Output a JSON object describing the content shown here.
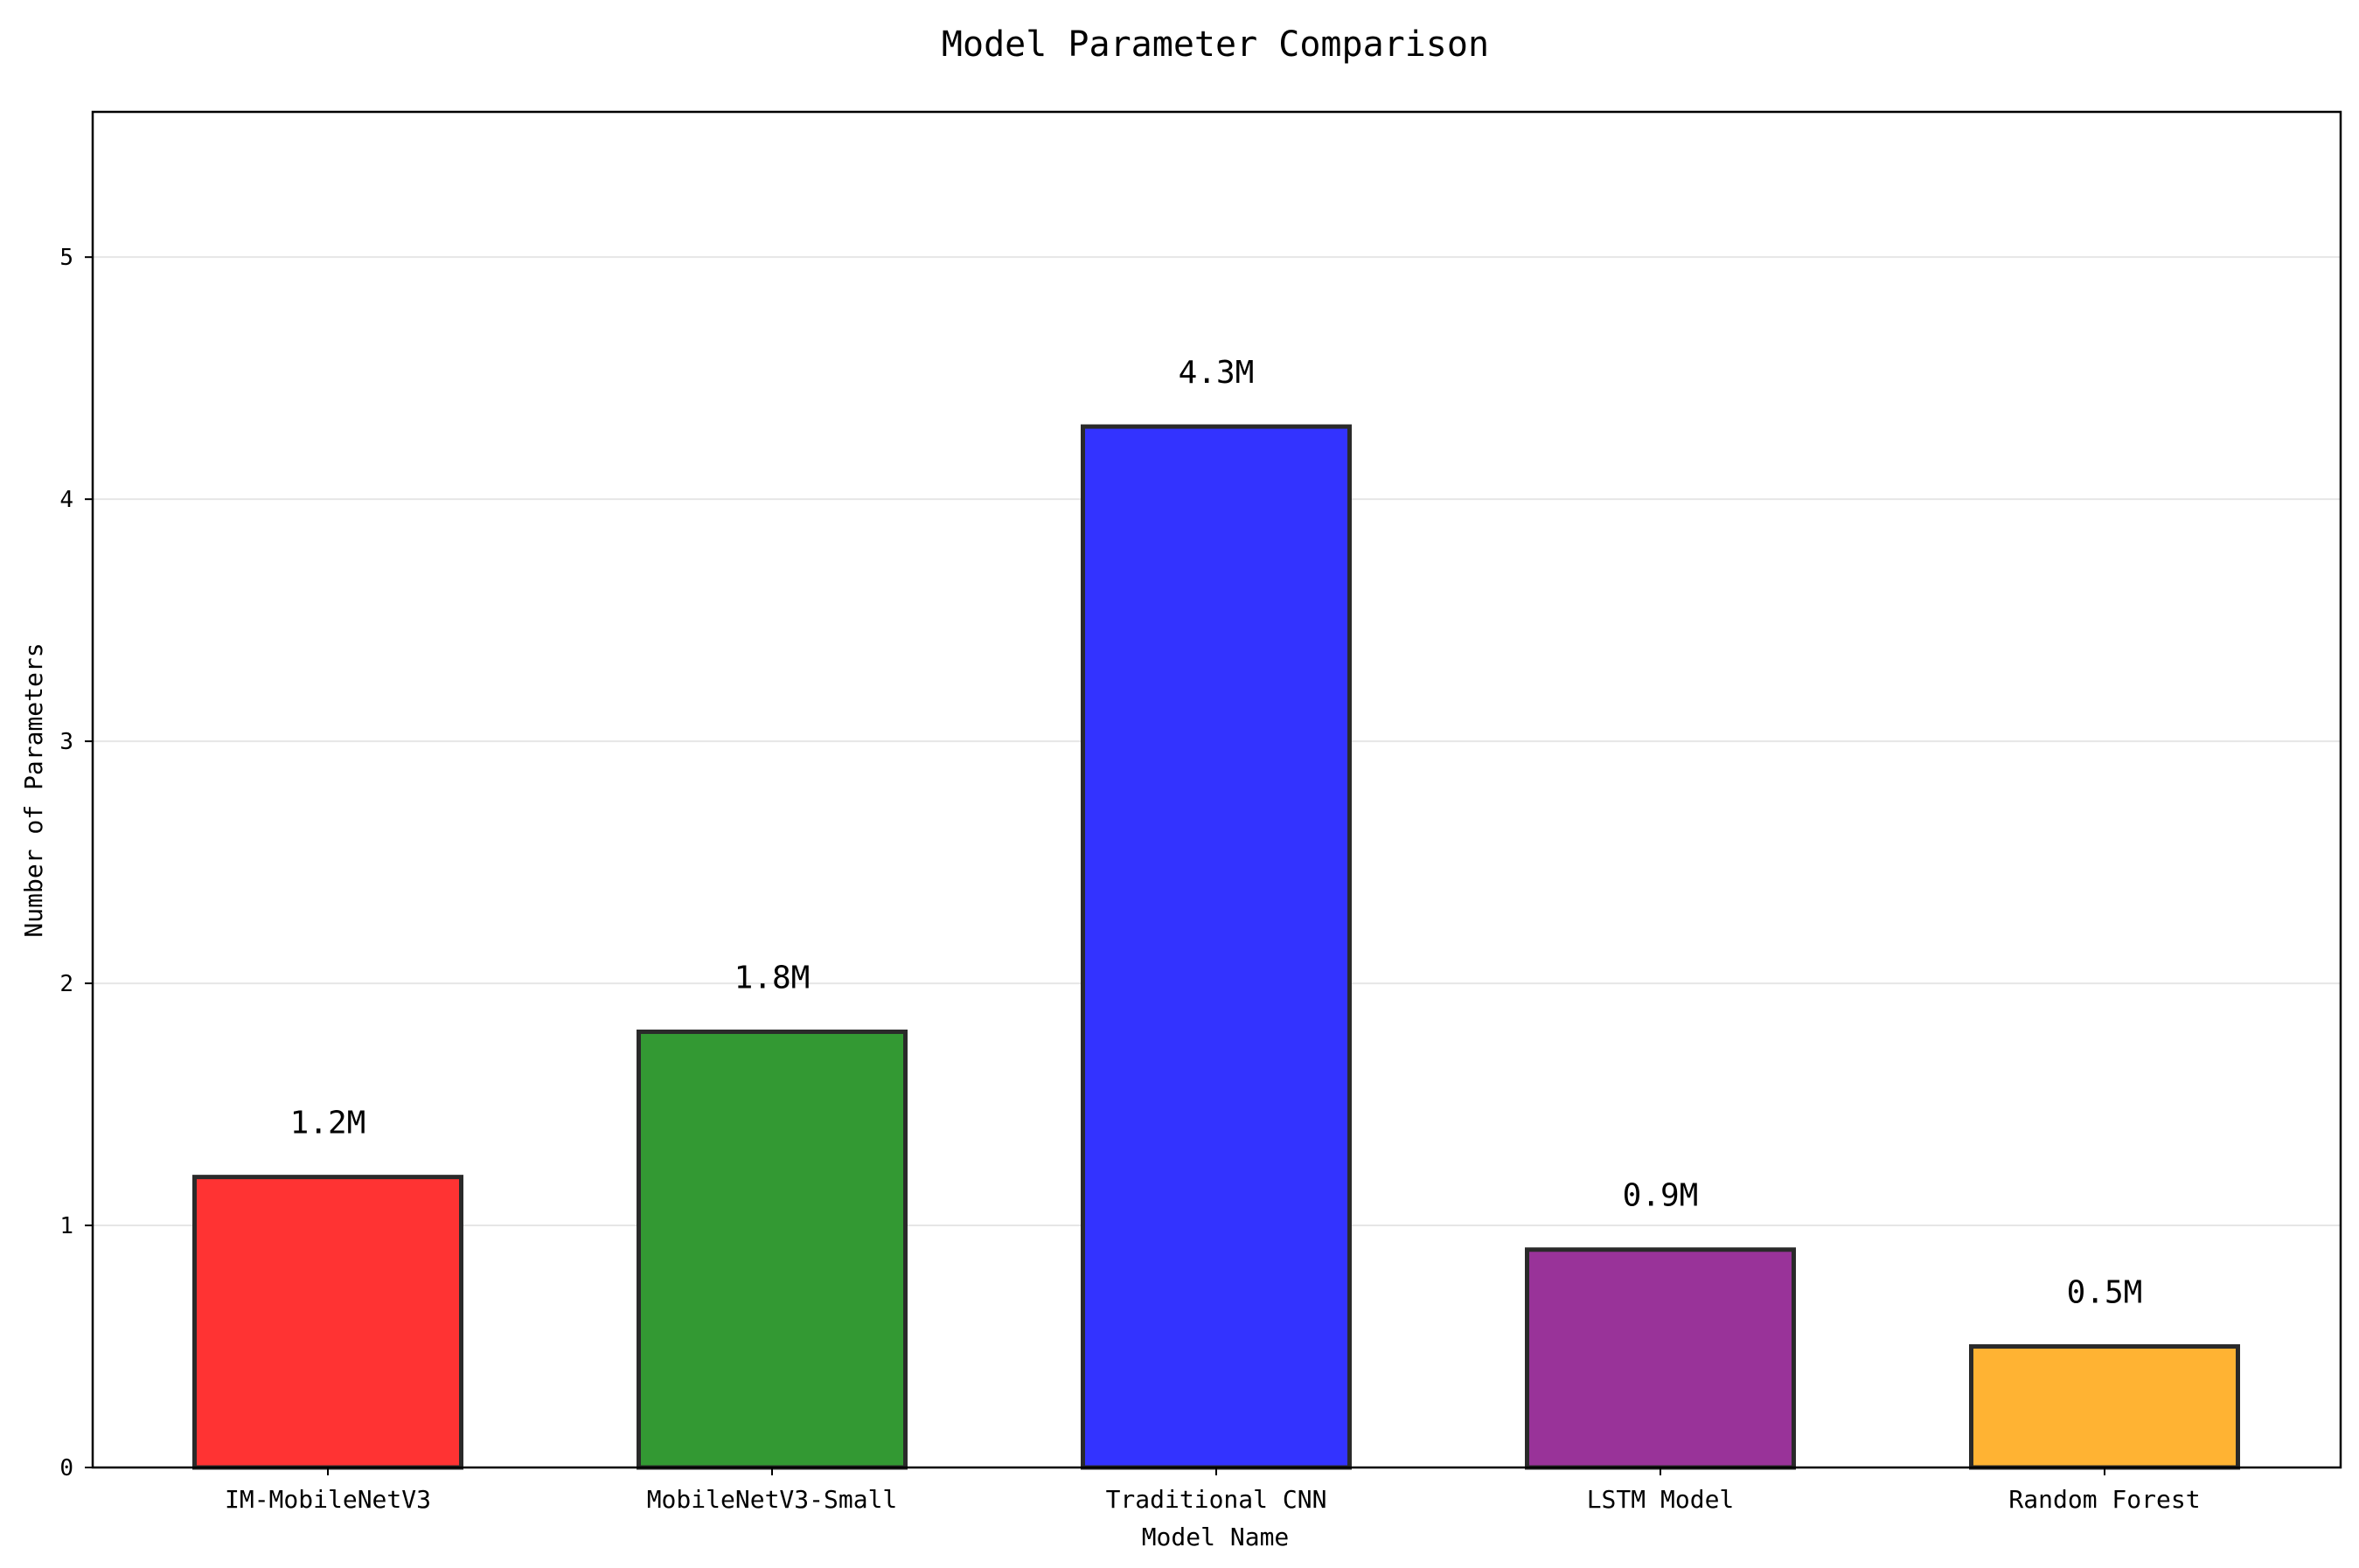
{
  "chart_data": {
    "type": "bar",
    "title": "Model Parameter Comparison",
    "xlabel": "Model Name",
    "ylabel": "Number of Parameters",
    "categories": [
      "IM-MobileNetV3",
      "MobileNetV3-Small",
      "Traditional CNN",
      "LSTM Model",
      "Random Forest"
    ],
    "values": [
      1.2,
      1.8,
      4.3,
      0.9,
      0.5
    ],
    "data_labels": [
      "1.2M",
      "1.8M",
      "4.3M",
      "0.9M",
      "0.5M"
    ],
    "colors": [
      "#ff3333",
      "#339933",
      "#3333ff",
      "#993399",
      "#ffb333"
    ],
    "edge_color": "#2a2a2a",
    "ylim": [
      0,
      5.6
    ],
    "yticks": [
      0,
      1,
      2,
      3,
      4,
      5
    ],
    "grid": "y",
    "grid_color": "#e6e6e6"
  }
}
